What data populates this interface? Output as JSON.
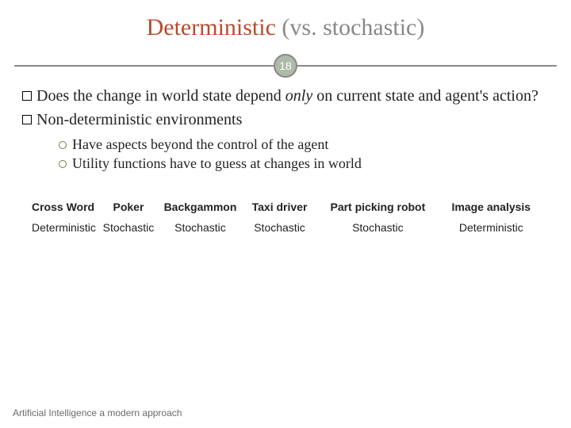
{
  "title": {
    "main": "Deterministic",
    "rest": " (vs. stochastic)",
    "main_color": "#b94a2f",
    "rest_color": "#888888",
    "fontsize": 30
  },
  "page_number": "18",
  "bullets": {
    "b1_pre": "Does the change in world state depend ",
    "b1_em": "only",
    "b1_post": " on current state and agent's action?",
    "b2": "Non-deterministic environments"
  },
  "subbullets": {
    "s1": "Have aspects beyond the control of the agent",
    "s2": "Utility functions have to guess at changes in world"
  },
  "table": {
    "headers": [
      "Cross Word",
      "Poker",
      "Backgammon",
      "Taxi driver",
      "Part picking robot",
      "Image analysis"
    ],
    "values": [
      "Deterministic",
      "Stochastic",
      "Stochastic",
      "Stochastic",
      "Stochastic",
      "Deterministic"
    ]
  },
  "footer": "Artificial Intelligence a modern approach",
  "colors": {
    "hr": "#888888",
    "badge_bg": "#aeb9a7",
    "badge_border": "#888888",
    "text": "#222222",
    "sub_bullet_border": "#7a7a4a",
    "background": "#ffffff"
  }
}
